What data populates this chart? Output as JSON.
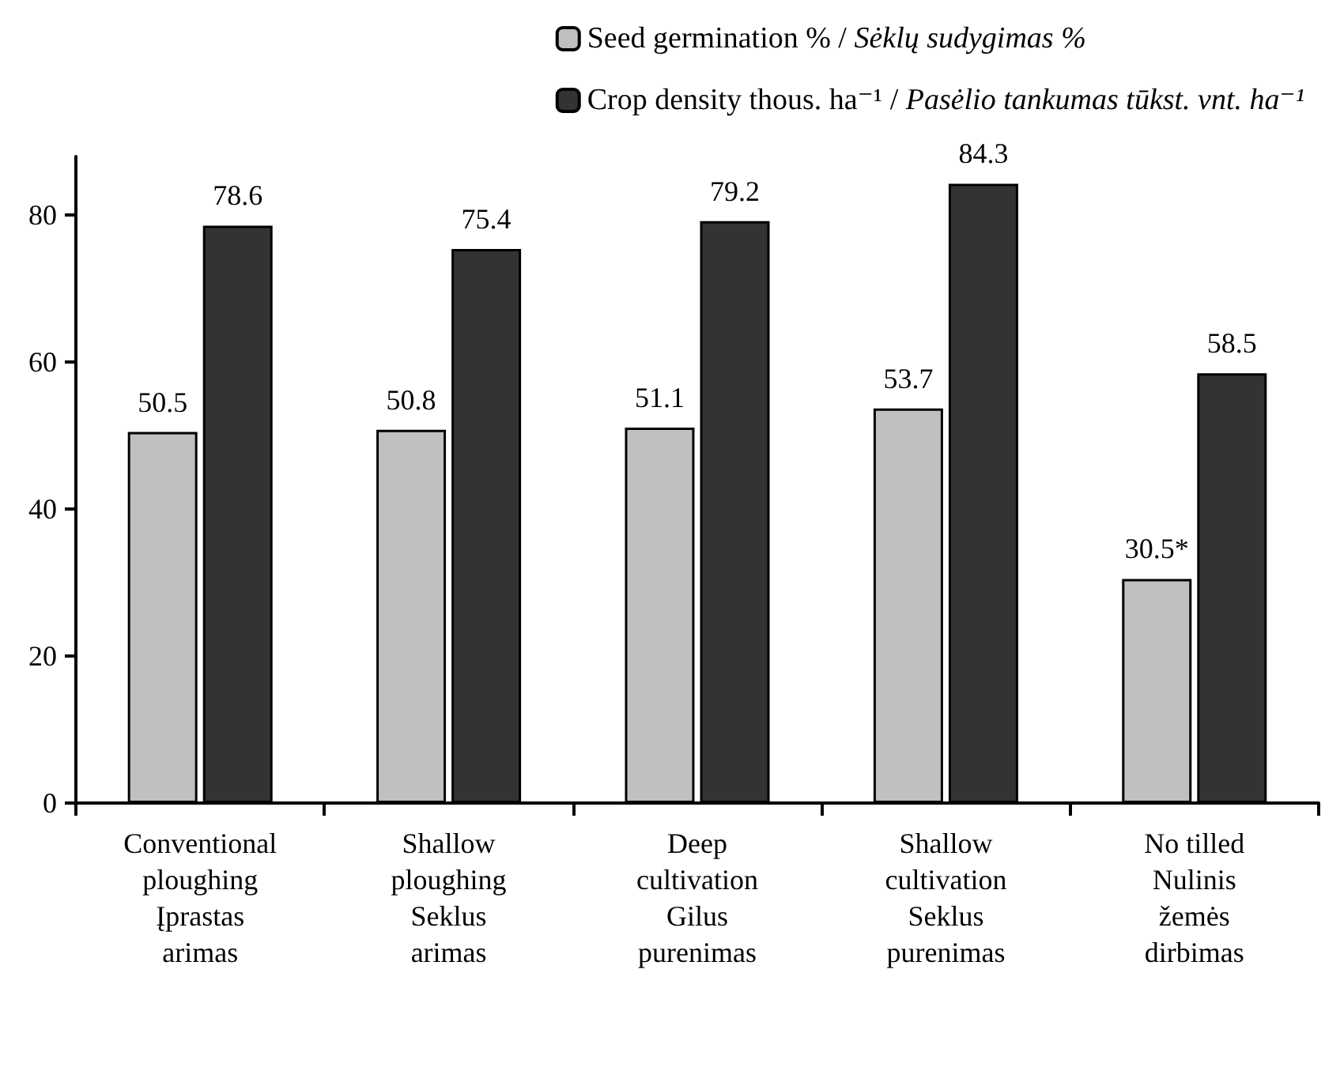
{
  "chart_data": {
    "type": "bar",
    "categories": [
      "Conventional\nploughing\nĮprastas\narimas",
      "Shallow\nploughing\nSeklus\narimas",
      "Deep\ncultivation\nGilus\npurenimas",
      "Shallow\ncultivation\nSeklus\npurenimas",
      "No tilled\nNulinis\nžemės\ndirbimas"
    ],
    "series": [
      {
        "name": "Seed germination % / Sėklų sudygimas %",
        "color": "#c0c0c0",
        "values": [
          50.5,
          50.8,
          51.1,
          53.7,
          30.5
        ],
        "value_labels": [
          "50.5",
          "50.8",
          "51.1",
          "53.7",
          "30.5*"
        ]
      },
      {
        "name": "Crop density thous. ha⁻¹ / Pasėlio tankumas tūkst. vnt. ha⁻¹",
        "color": "#333333",
        "values": [
          78.6,
          75.4,
          79.2,
          84.3,
          58.5
        ],
        "value_labels": [
          "78.6",
          "75.4",
          "79.2",
          "84.3",
          "58.5"
        ]
      }
    ],
    "ylim": [
      0,
      88
    ],
    "yticks": [
      0,
      20,
      40,
      60,
      80
    ],
    "grid": false,
    "legend": "top right"
  }
}
